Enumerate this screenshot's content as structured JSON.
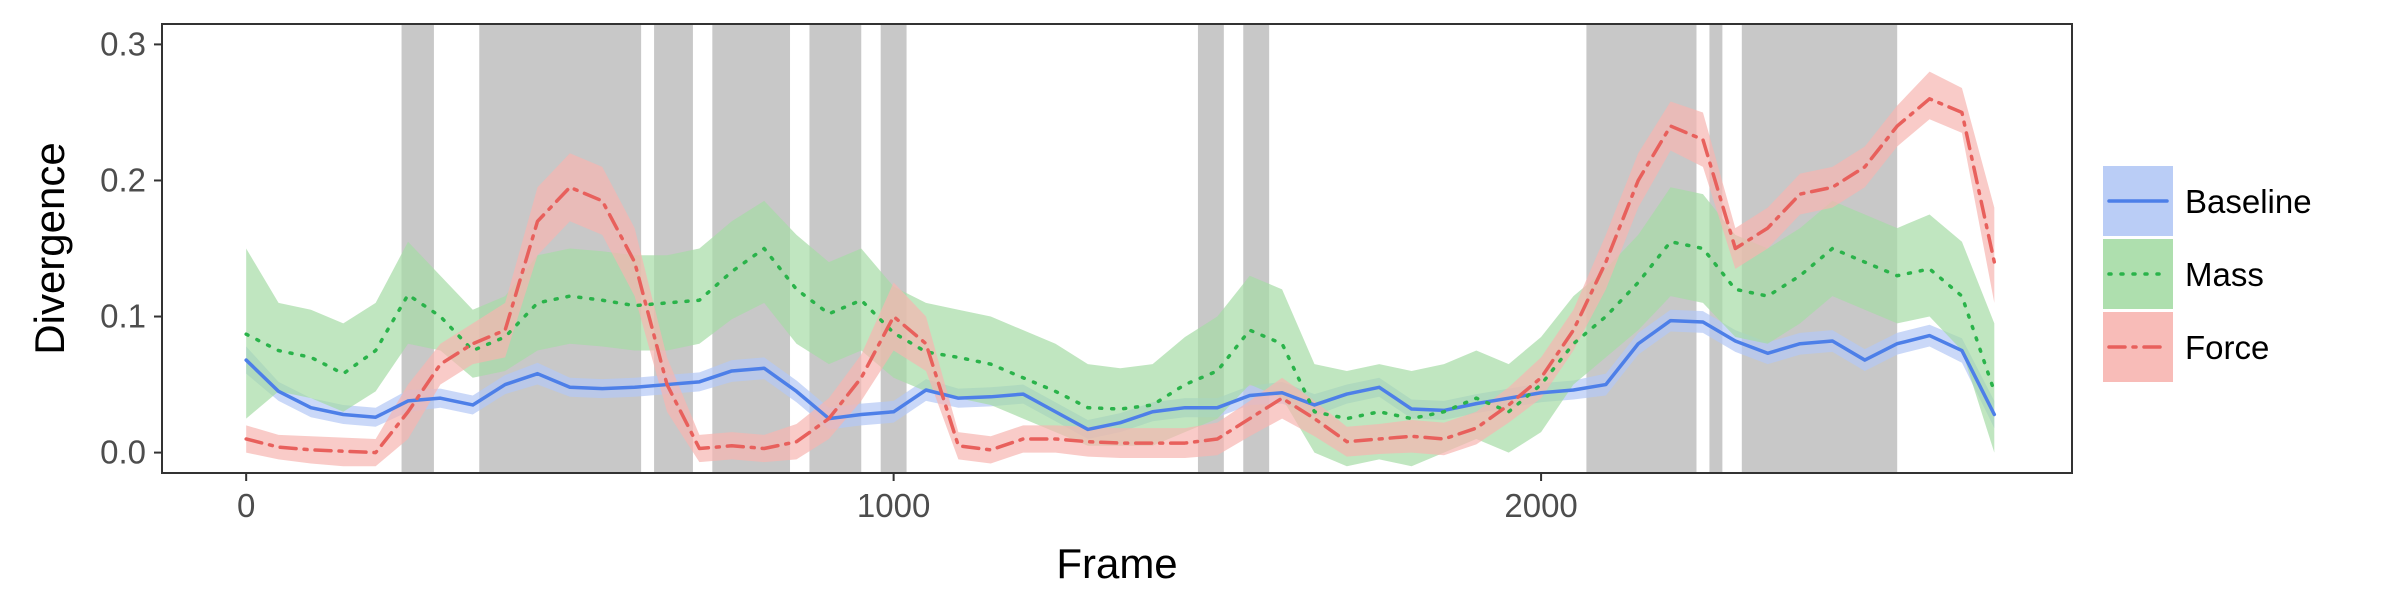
{
  "chart_data": {
    "type": "line",
    "xlabel": "Frame",
    "ylabel": "Divergence",
    "xlim": [
      -130,
      2820
    ],
    "ylim": [
      -0.015,
      0.315
    ],
    "x_ticks": [
      0,
      1000,
      2000
    ],
    "x_tick_labels": [
      "0",
      "1000",
      "2000"
    ],
    "y_ticks": [
      0.0,
      0.1,
      0.2,
      0.3
    ],
    "y_tick_labels": [
      "0.0",
      "0.1",
      "0.2",
      "0.3"
    ],
    "grid": false,
    "legend_position": "right",
    "shaded_regions": [
      [
        240,
        290
      ],
      [
        360,
        610
      ],
      [
        630,
        690
      ],
      [
        720,
        840
      ],
      [
        870,
        950
      ],
      [
        980,
        1020
      ],
      [
        1470,
        1510
      ],
      [
        1540,
        1580
      ],
      [
        2070,
        2240
      ],
      [
        2260,
        2280
      ],
      [
        2310,
        2550
      ]
    ],
    "shaded_color": "#c8c8c8",
    "series": [
      {
        "name": "Baseline",
        "color": "#4d7fe8",
        "band_color": "#b3c8f5",
        "line_style": "solid",
        "x": [
          0,
          50,
          100,
          150,
          200,
          250,
          300,
          350,
          400,
          450,
          500,
          550,
          600,
          650,
          700,
          750,
          800,
          850,
          900,
          950,
          1000,
          1050,
          1100,
          1150,
          1200,
          1250,
          1300,
          1350,
          1400,
          1450,
          1500,
          1550,
          1600,
          1650,
          1700,
          1750,
          1800,
          1850,
          1900,
          1950,
          2000,
          2050,
          2100,
          2150,
          2200,
          2250,
          2300,
          2350,
          2400,
          2450,
          2500,
          2550,
          2600,
          2650,
          2700
        ],
        "y": [
          0.068,
          0.045,
          0.033,
          0.028,
          0.026,
          0.038,
          0.04,
          0.035,
          0.05,
          0.058,
          0.048,
          0.047,
          0.048,
          0.05,
          0.052,
          0.06,
          0.062,
          0.045,
          0.025,
          0.028,
          0.03,
          0.046,
          0.04,
          0.041,
          0.043,
          0.03,
          0.017,
          0.022,
          0.03,
          0.033,
          0.033,
          0.042,
          0.044,
          0.035,
          0.043,
          0.048,
          0.032,
          0.031,
          0.036,
          0.04,
          0.044,
          0.046,
          0.05,
          0.08,
          0.097,
          0.096,
          0.082,
          0.073,
          0.08,
          0.082,
          0.068,
          0.08,
          0.086,
          0.075,
          0.028
        ],
        "lower": [
          0.058,
          0.038,
          0.026,
          0.021,
          0.019,
          0.03,
          0.033,
          0.028,
          0.043,
          0.05,
          0.041,
          0.04,
          0.041,
          0.043,
          0.045,
          0.052,
          0.054,
          0.037,
          0.017,
          0.02,
          0.022,
          0.038,
          0.033,
          0.034,
          0.036,
          0.023,
          0.01,
          0.015,
          0.023,
          0.026,
          0.026,
          0.035,
          0.036,
          0.027,
          0.036,
          0.041,
          0.025,
          0.024,
          0.029,
          0.033,
          0.037,
          0.039,
          0.042,
          0.072,
          0.089,
          0.088,
          0.074,
          0.065,
          0.072,
          0.074,
          0.06,
          0.072,
          0.078,
          0.066,
          0.018
        ],
        "upper": [
          0.078,
          0.052,
          0.04,
          0.035,
          0.033,
          0.046,
          0.047,
          0.042,
          0.057,
          0.066,
          0.055,
          0.054,
          0.055,
          0.057,
          0.059,
          0.068,
          0.07,
          0.053,
          0.033,
          0.036,
          0.038,
          0.054,
          0.047,
          0.048,
          0.05,
          0.037,
          0.024,
          0.029,
          0.037,
          0.04,
          0.04,
          0.049,
          0.052,
          0.043,
          0.05,
          0.055,
          0.039,
          0.038,
          0.043,
          0.047,
          0.051,
          0.053,
          0.058,
          0.088,
          0.105,
          0.104,
          0.09,
          0.081,
          0.088,
          0.09,
          0.076,
          0.088,
          0.094,
          0.084,
          0.038
        ]
      },
      {
        "name": "Mass",
        "color": "#2ab34a",
        "band_color": "#a5dca5",
        "line_style": "dotted",
        "x": [
          0,
          50,
          100,
          150,
          200,
          250,
          300,
          350,
          400,
          450,
          500,
          550,
          600,
          650,
          700,
          750,
          800,
          850,
          900,
          950,
          1000,
          1050,
          1100,
          1150,
          1200,
          1250,
          1300,
          1350,
          1400,
          1450,
          1500,
          1550,
          1600,
          1650,
          1700,
          1750,
          1800,
          1850,
          1900,
          1950,
          2000,
          2050,
          2100,
          2150,
          2200,
          2250,
          2300,
          2350,
          2400,
          2450,
          2500,
          2550,
          2600,
          2650,
          2700
        ],
        "y": [
          0.087,
          0.075,
          0.07,
          0.058,
          0.075,
          0.116,
          0.1,
          0.075,
          0.085,
          0.11,
          0.115,
          0.112,
          0.108,
          0.11,
          0.112,
          0.133,
          0.15,
          0.12,
          0.102,
          0.112,
          0.088,
          0.074,
          0.07,
          0.065,
          0.055,
          0.045,
          0.033,
          0.032,
          0.035,
          0.05,
          0.06,
          0.09,
          0.08,
          0.03,
          0.025,
          0.03,
          0.025,
          0.03,
          0.04,
          0.03,
          0.05,
          0.08,
          0.1,
          0.125,
          0.155,
          0.15,
          0.12,
          0.115,
          0.13,
          0.15,
          0.14,
          0.13,
          0.135,
          0.115,
          0.045
        ],
        "lower": [
          0.025,
          0.045,
          0.04,
          0.03,
          0.045,
          0.08,
          0.075,
          0.055,
          0.06,
          0.075,
          0.08,
          0.078,
          0.075,
          0.075,
          0.08,
          0.098,
          0.11,
          0.08,
          0.065,
          0.075,
          0.055,
          0.045,
          0.04,
          0.035,
          0.025,
          0.015,
          0.005,
          0.005,
          0.005,
          0.015,
          0.025,
          0.05,
          0.04,
          0.0,
          -0.01,
          -0.005,
          -0.01,
          0.0,
          0.01,
          0.0,
          0.015,
          0.05,
          0.07,
          0.09,
          0.115,
          0.11,
          0.085,
          0.08,
          0.095,
          0.115,
          0.105,
          0.095,
          0.1,
          0.075,
          0.0
        ],
        "upper": [
          0.15,
          0.11,
          0.105,
          0.095,
          0.11,
          0.155,
          0.13,
          0.105,
          0.115,
          0.145,
          0.15,
          0.148,
          0.145,
          0.145,
          0.15,
          0.17,
          0.185,
          0.16,
          0.14,
          0.15,
          0.122,
          0.11,
          0.105,
          0.1,
          0.09,
          0.08,
          0.065,
          0.062,
          0.065,
          0.085,
          0.1,
          0.13,
          0.12,
          0.065,
          0.06,
          0.065,
          0.06,
          0.065,
          0.075,
          0.065,
          0.085,
          0.115,
          0.135,
          0.16,
          0.195,
          0.19,
          0.16,
          0.15,
          0.165,
          0.185,
          0.175,
          0.165,
          0.175,
          0.155,
          0.095
        ]
      },
      {
        "name": "Force",
        "color": "#e8605c",
        "band_color": "#f7b5b0",
        "line_style": "dashdot",
        "x": [
          0,
          50,
          100,
          150,
          200,
          250,
          300,
          350,
          400,
          450,
          500,
          550,
          600,
          650,
          700,
          750,
          800,
          850,
          900,
          950,
          1000,
          1050,
          1100,
          1150,
          1200,
          1250,
          1300,
          1350,
          1400,
          1450,
          1500,
          1550,
          1600,
          1650,
          1700,
          1750,
          1800,
          1850,
          1900,
          1950,
          2000,
          2050,
          2100,
          2150,
          2200,
          2250,
          2300,
          2350,
          2400,
          2450,
          2500,
          2550,
          2600,
          2650,
          2700
        ],
        "y": [
          0.01,
          0.004,
          0.002,
          0.001,
          0.0,
          0.03,
          0.065,
          0.08,
          0.09,
          0.17,
          0.195,
          0.185,
          0.14,
          0.05,
          0.003,
          0.005,
          0.003,
          0.008,
          0.025,
          0.055,
          0.1,
          0.08,
          0.005,
          0.002,
          0.01,
          0.01,
          0.008,
          0.007,
          0.007,
          0.007,
          0.01,
          0.025,
          0.04,
          0.025,
          0.008,
          0.01,
          0.012,
          0.01,
          0.018,
          0.035,
          0.055,
          0.09,
          0.14,
          0.2,
          0.24,
          0.23,
          0.15,
          0.165,
          0.19,
          0.195,
          0.21,
          0.24,
          0.26,
          0.25,
          0.14
        ],
        "lower": [
          0.0,
          -0.005,
          -0.008,
          -0.01,
          -0.01,
          0.01,
          0.05,
          0.065,
          0.07,
          0.145,
          0.17,
          0.16,
          0.115,
          0.03,
          -0.007,
          -0.005,
          -0.007,
          -0.005,
          0.01,
          0.038,
          0.075,
          0.06,
          -0.005,
          -0.008,
          0.0,
          0.0,
          -0.003,
          -0.004,
          -0.004,
          -0.004,
          -0.002,
          0.012,
          0.025,
          0.012,
          -0.003,
          -0.001,
          0.0,
          -0.002,
          0.006,
          0.022,
          0.04,
          0.075,
          0.12,
          0.18,
          0.222,
          0.21,
          0.135,
          0.15,
          0.175,
          0.18,
          0.195,
          0.225,
          0.245,
          0.235,
          0.11
        ],
        "upper": [
          0.02,
          0.013,
          0.012,
          0.011,
          0.01,
          0.05,
          0.08,
          0.095,
          0.11,
          0.195,
          0.22,
          0.21,
          0.165,
          0.07,
          0.013,
          0.015,
          0.013,
          0.021,
          0.04,
          0.072,
          0.125,
          0.1,
          0.015,
          0.012,
          0.02,
          0.02,
          0.019,
          0.018,
          0.018,
          0.018,
          0.022,
          0.038,
          0.055,
          0.038,
          0.019,
          0.021,
          0.024,
          0.022,
          0.03,
          0.048,
          0.07,
          0.105,
          0.16,
          0.22,
          0.258,
          0.25,
          0.165,
          0.18,
          0.205,
          0.21,
          0.225,
          0.255,
          0.28,
          0.268,
          0.18
        ]
      }
    ]
  }
}
